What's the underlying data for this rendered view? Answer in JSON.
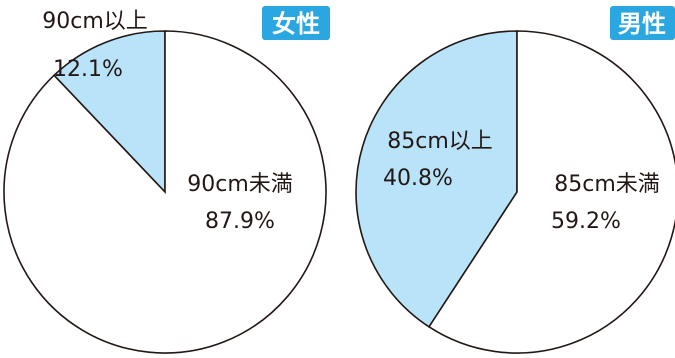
{
  "chart_data": [
    {
      "type": "pie",
      "title": "女性",
      "slices": [
        {
          "label": "90cm以上",
          "value": 12.1,
          "value_label": "12.1%",
          "color": "#b9e3f8"
        },
        {
          "label": "90cm未満",
          "value": 87.9,
          "value_label": "87.9%",
          "color": "#ffffff"
        }
      ],
      "badge_color": "#2aa7e0"
    },
    {
      "type": "pie",
      "title": "男性",
      "slices": [
        {
          "label": "85cm以上",
          "value": 40.8,
          "value_label": "40.8%",
          "color": "#b9e3f8"
        },
        {
          "label": "85cm未満",
          "value": 59.2,
          "value_label": "59.2%",
          "color": "#ffffff"
        }
      ],
      "badge_color": "#2aa7e0"
    }
  ]
}
